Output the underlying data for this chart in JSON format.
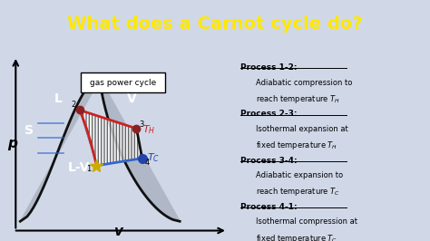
{
  "title": "What does a Carnot cycle do?",
  "title_color": "#FFE800",
  "title_bg": "#1a2a4a",
  "bg_color": "#d0d8e8",
  "plot_bg": "#c8d0e0",
  "axis_label_p": "p",
  "axis_label_v": "v",
  "label_L": "L",
  "label_S": "S",
  "label_V": "V",
  "label_LV": "L-V",
  "gas_box_label": "gas power cycle",
  "processes": [
    {
      "title": "Process 1-2:",
      "line1": "Adiabatic compression to",
      "line2": "reach temperature $T_H$"
    },
    {
      "title": "Process 2-3:",
      "line1": "Isothermal expansion at",
      "line2": "fixed temperature $T_H$"
    },
    {
      "title": "Process 3-4:",
      "line1": "Adiabatic expansion to",
      "line2": "reach temperature $T_C$"
    },
    {
      "title": "Process 4-1:",
      "line1": "Isothermal compression at",
      "line2": "fixed temperature $T_C$"
    }
  ],
  "dome_color": "#b0b8c8",
  "dome_edge": "#111111",
  "red_line_color": "#cc2222",
  "blue_line_color": "#3366cc",
  "hatch_color": "#444444",
  "pt2_color": "#8b2222",
  "pt3_color": "#8b2222",
  "pt4_color": "#2244aa",
  "pt1_color": "#ccaa00",
  "TH_color": "#cc2222",
  "TC_color": "#2244aa"
}
